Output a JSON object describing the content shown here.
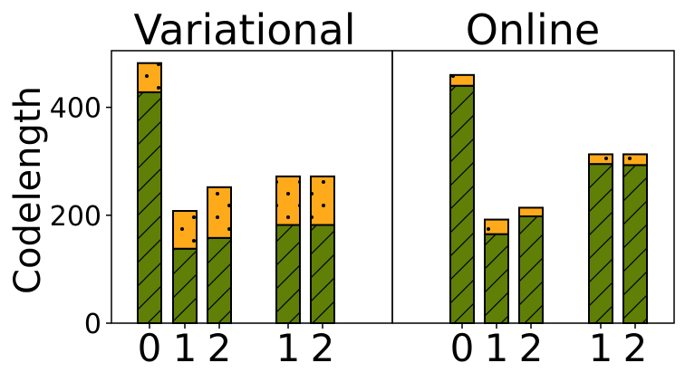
{
  "chart_data": {
    "type": "bar",
    "stacked": true,
    "ylabel": "Codelength",
    "ylim": [
      0,
      505
    ],
    "yticks": [
      0,
      200,
      400
    ],
    "colors": {
      "bottom": "#5f7f07",
      "top": "#ffaa1a",
      "edge": "#000000"
    },
    "panels": [
      {
        "title": "Variational",
        "categories": [
          "0",
          "1",
          "2",
          "1",
          "2"
        ],
        "series": [
          {
            "values": [
              428,
              138,
              158,
              182,
              182
            ],
            "hatch": "slash"
          },
          {
            "values": [
              54,
              70,
              94,
              90,
              90
            ],
            "hatch": "dots"
          }
        ]
      },
      {
        "title": "Online",
        "categories": [
          "0",
          "1",
          "2",
          "1",
          "2"
        ],
        "series": [
          {
            "values": [
              440,
              165,
              198,
              295,
              293
            ],
            "hatch": "slash"
          },
          {
            "values": [
              20,
              27,
              16,
              18,
              20
            ],
            "hatch": "dots"
          }
        ]
      }
    ]
  }
}
